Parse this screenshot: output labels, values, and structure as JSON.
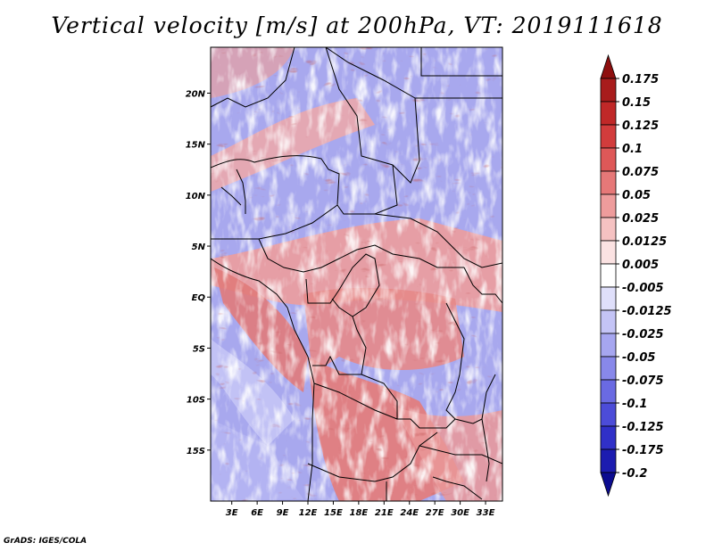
{
  "title": "Vertical velocity [m/s] at 200hPa, VT: 2019111618",
  "credit": "GrADS: IGES/COLA",
  "map": {
    "lat_labels": [
      "20N",
      "15N",
      "10N",
      "5N",
      "EQ",
      "5S",
      "10S",
      "15S"
    ],
    "lat_values": [
      20,
      15,
      10,
      5,
      0,
      -5,
      -10,
      -15
    ],
    "lon_labels": [
      "3E",
      "6E",
      "9E",
      "12E",
      "15E",
      "18E",
      "21E",
      "24E",
      "27E",
      "30E",
      "33E"
    ],
    "lon_values": [
      3,
      6,
      9,
      12,
      15,
      18,
      21,
      24,
      27,
      30,
      33
    ],
    "lon_range": [
      0.5,
      35
    ],
    "lat_range": [
      -20,
      24.5
    ]
  },
  "colorbar": {
    "labels": [
      "0.175",
      "0.15",
      "0.125",
      "0.1",
      "0.075",
      "0.05",
      "0.025",
      "0.0125",
      "0.005",
      "-0.005",
      "-0.0125",
      "-0.025",
      "-0.05",
      "-0.075",
      "-0.1",
      "-0.125",
      "-0.175",
      "-0.2"
    ],
    "colors": [
      "#8e0f0f",
      "#a81c1c",
      "#c02828",
      "#d23c3c",
      "#de5858",
      "#e67878",
      "#ee9c9c",
      "#f5c2c2",
      "#fbe2e2",
      "#ffffff",
      "#dfdffa",
      "#c4c4f6",
      "#a6a6f0",
      "#8888ea",
      "#6a6ae2",
      "#4c4cd8",
      "#3030c8",
      "#1c1cb0",
      "#0c0c90"
    ]
  }
}
